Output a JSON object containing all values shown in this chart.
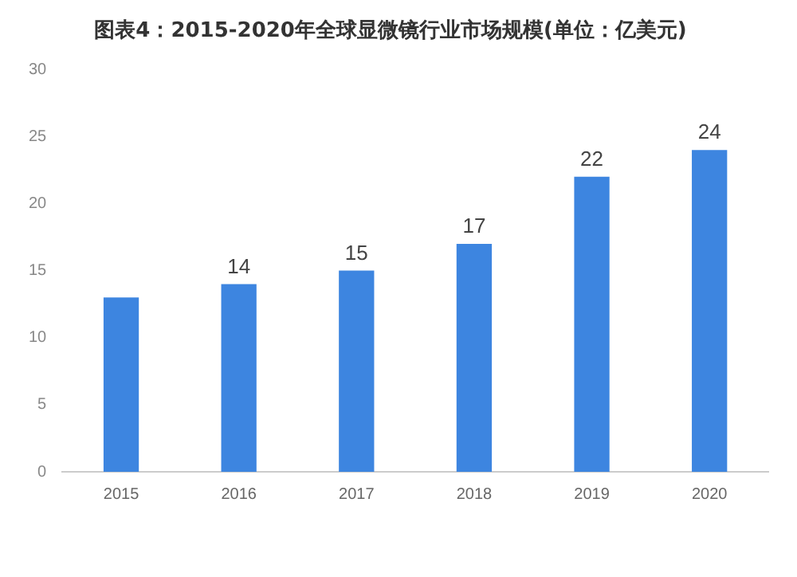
{
  "chart_data": {
    "type": "bar",
    "title": "图表4：2015-2020年全球显微镜行业市场规模(单位：亿美元)",
    "categories": [
      "2015",
      "2016",
      "2017",
      "2018",
      "2019",
      "2020"
    ],
    "values": [
      13,
      14,
      15,
      17,
      22,
      24
    ],
    "value_labels": [
      null,
      "14",
      "15",
      "17",
      "22",
      "24"
    ],
    "color": "#3d85e0",
    "ylim": [
      0,
      30
    ],
    "yticks": [
      0,
      5,
      10,
      15,
      20,
      25,
      30
    ],
    "grid": false,
    "legend": false
  }
}
